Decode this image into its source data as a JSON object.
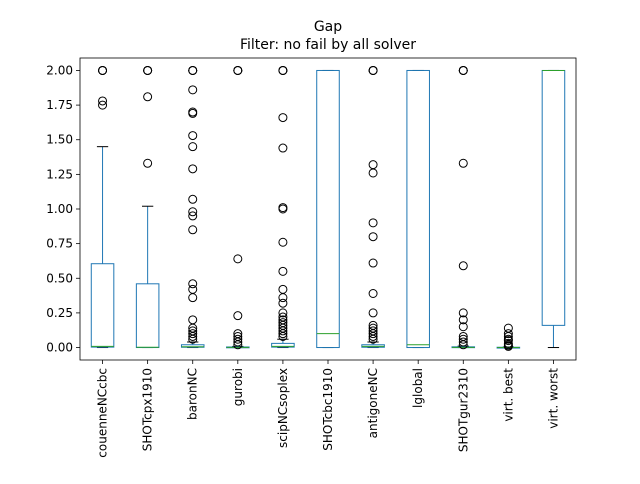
{
  "chart_data": {
    "type": "box",
    "title": "Gap",
    "subtitle": "Filter: no fail by all solver",
    "xlabel": "",
    "ylabel": "",
    "ylim": [
      -0.09,
      2.09
    ],
    "yticks": [
      0.0,
      0.25,
      0.5,
      0.75,
      1.0,
      1.25,
      1.5,
      1.75,
      2.0
    ],
    "ytick_labels": [
      "0.00",
      "0.25",
      "0.50",
      "0.75",
      "1.00",
      "1.25",
      "1.50",
      "1.75",
      "2.00"
    ],
    "grid": false,
    "colors": {
      "box": "#1f77b4",
      "median": "#2ca02c",
      "whisker": "#1f77b4",
      "flier": "#000000"
    },
    "categories": [
      "couenneNCcbc",
      "SHOTcpx1910",
      "baronNC",
      "gurobi",
      "scipNCsoplex",
      "SHOTcbc1910",
      "antigoneNC",
      "lglobal",
      "SHOTgur2310",
      "virt. best",
      "virt. worst"
    ],
    "boxes": [
      {
        "name": "couenneNCcbc",
        "q1": 0.003,
        "median": 0.008,
        "q3": 0.605,
        "whislo": 0.0,
        "whishi": 1.45,
        "fliers": [
          1.75,
          1.78,
          2.0,
          2.0,
          2.0
        ]
      },
      {
        "name": "SHOTcpx1910",
        "q1": 0.0,
        "median": 0.002,
        "q3": 0.46,
        "whislo": 0.0,
        "whishi": 1.02,
        "fliers": [
          1.33,
          1.81,
          2.0,
          2.0,
          2.0
        ]
      },
      {
        "name": "baronNC",
        "q1": 0.002,
        "median": 0.006,
        "q3": 0.02,
        "whislo": 0.0,
        "whishi": 0.04,
        "fliers": [
          0.06,
          0.08,
          0.1,
          0.12,
          0.14,
          0.2,
          0.36,
          0.42,
          0.46,
          0.85,
          0.95,
          0.98,
          1.07,
          1.29,
          1.45,
          1.53,
          1.69,
          1.7,
          1.86,
          2.0,
          2.0,
          2.0
        ]
      },
      {
        "name": "gurobi",
        "q1": 0.0,
        "median": 0.001,
        "q3": 0.004,
        "whislo": 0.0,
        "whishi": 0.008,
        "fliers": [
          0.02,
          0.04,
          0.06,
          0.08,
          0.1,
          0.23,
          0.64,
          2.0,
          2.0,
          2.0
        ]
      },
      {
        "name": "scipNCsoplex",
        "q1": 0.003,
        "median": 0.008,
        "q3": 0.03,
        "whislo": 0.0,
        "whishi": 0.06,
        "fliers": [
          0.08,
          0.1,
          0.12,
          0.14,
          0.16,
          0.18,
          0.2,
          0.22,
          0.25,
          0.32,
          0.36,
          0.42,
          0.55,
          0.76,
          1.0,
          1.01,
          1.44,
          1.66,
          2.0,
          2.0,
          2.0
        ]
      },
      {
        "name": "SHOTcbc1910",
        "q1": 0.0,
        "median": 0.1,
        "q3": 2.0,
        "whislo": 0.0,
        "whishi": 2.0,
        "fliers": []
      },
      {
        "name": "antigoneNC",
        "q1": 0.002,
        "median": 0.008,
        "q3": 0.02,
        "whislo": 0.0,
        "whishi": 0.04,
        "fliers": [
          0.06,
          0.08,
          0.1,
          0.12,
          0.14,
          0.16,
          0.25,
          0.39,
          0.61,
          0.8,
          0.9,
          1.26,
          1.32,
          2.0,
          2.0,
          2.0
        ]
      },
      {
        "name": "lglobal",
        "q1": 0.0,
        "median": 0.02,
        "q3": 2.0,
        "whislo": 0.0,
        "whishi": 2.0,
        "fliers": []
      },
      {
        "name": "SHOTgur2310",
        "q1": 0.0,
        "median": 0.001,
        "q3": 0.005,
        "whislo": 0.0,
        "whishi": 0.01,
        "fliers": [
          0.02,
          0.04,
          0.06,
          0.08,
          0.15,
          0.2,
          0.25,
          0.59,
          1.33,
          2.0,
          2.0,
          2.0
        ]
      },
      {
        "name": "virt. best",
        "q1": 0.0,
        "median": 0.0005,
        "q3": 0.002,
        "whislo": 0.0,
        "whishi": 0.004,
        "fliers": [
          0.008,
          0.012,
          0.02,
          0.03,
          0.05,
          0.06,
          0.08,
          0.1,
          0.14
        ]
      },
      {
        "name": "virt. worst",
        "q1": 0.16,
        "median": 2.0,
        "q3": 2.0,
        "whislo": 0.0,
        "whishi": 2.0,
        "fliers": []
      }
    ]
  }
}
